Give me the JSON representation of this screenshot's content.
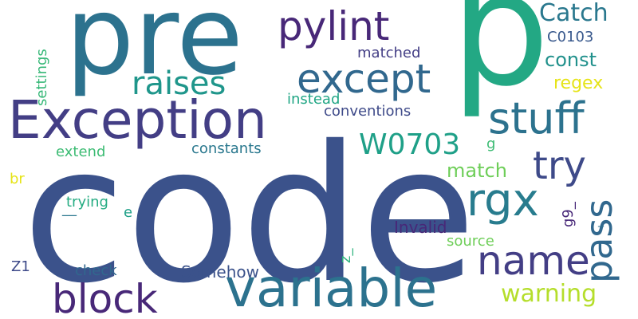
{
  "word_cloud": {
    "words": {
      "code": "code",
      "p": "p",
      "pre": "pre",
      "exception": "Exception",
      "variable": "variable",
      "stuff": "stuff",
      "except": "except",
      "pylint": "pylint",
      "rgx": "rgx",
      "name": "name",
      "block": "block",
      "try": "try",
      "raises": "raises",
      "pass": "pass",
      "w0703": "W0703",
      "catch": "Catch",
      "warning": "warning",
      "const": "const",
      "match": "match",
      "regex": "regex",
      "c0103": "C0103",
      "matched": "matched",
      "instead": "instead",
      "conventions": "conventions",
      "constants": "constants",
      "extend": "extend",
      "settings": "settings",
      "trying": "trying",
      "underscore_line": "__",
      "e": "e",
      "invalid": "Invalid",
      "source": "source",
      "z1": "Z1",
      "check": "check",
      "somehow": "Somehow",
      "br": "br",
      "g": "g",
      "g9": "g9_",
      "z_vertical": "z_",
      "tick": "_"
    },
    "colors": {
      "background": "#ffffff",
      "dark_purple": "#482878",
      "indigo": "#433e85",
      "blue": "#3b528b",
      "teal_blue": "#2c728e",
      "teal": "#21918c",
      "green_teal": "#1fa088",
      "green": "#23a884",
      "light_green": "#6ece58",
      "lime": "#b5de2b",
      "yellow": "#e6e419"
    }
  }
}
